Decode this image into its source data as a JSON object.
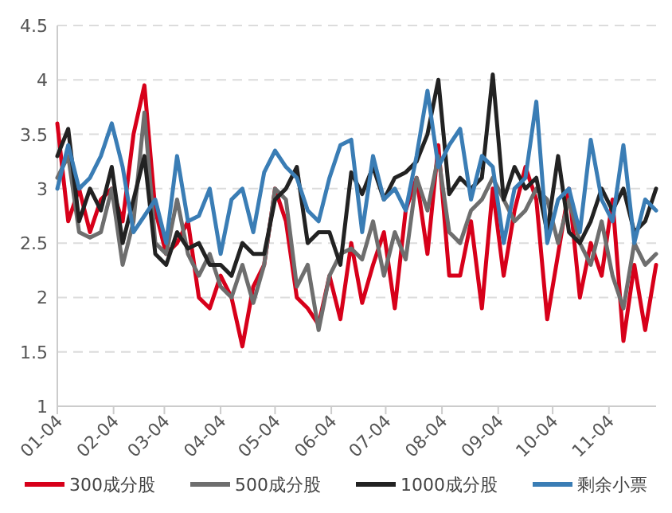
{
  "chart_data": {
    "type": "line",
    "x": [
      "--01-04",
      "--01-10",
      "--01-16",
      "--01-22",
      "--01-28",
      "--02-03",
      "--02-09",
      "--02-15",
      "--02-21",
      "--02-27",
      "--03-05",
      "--03-11",
      "--03-17",
      "--03-23",
      "--03-29",
      "--04-04",
      "--04-10",
      "--04-16",
      "--04-22",
      "--04-28",
      "--05-04",
      "--05-10",
      "--05-16",
      "--05-22",
      "--05-28",
      "--06-03",
      "--06-09",
      "--06-15",
      "--06-21",
      "--06-27",
      "--07-03",
      "--07-09",
      "--07-15",
      "--07-21",
      "--07-27",
      "--08-02",
      "--08-08",
      "--08-14",
      "--08-20",
      "--08-26",
      "--09-01",
      "--09-07",
      "--09-13",
      "--09-19",
      "--09-25",
      "--10-01",
      "--10-07",
      "--10-13",
      "--10-19",
      "--10-25",
      "--10-31",
      "--11-06",
      "--11-12",
      "--11-18",
      "--11-24",
      "--11-30"
    ],
    "series": [
      {
        "name": "300成分股",
        "color": "#d7001a",
        "values": [
          3.6,
          2.7,
          3.0,
          2.6,
          2.9,
          3.0,
          2.7,
          3.5,
          3.95,
          2.8,
          2.4,
          2.5,
          2.7,
          2.0,
          1.9,
          2.2,
          2.0,
          1.55,
          2.1,
          2.3,
          3.0,
          2.7,
          2.0,
          1.9,
          1.75,
          2.2,
          1.8,
          2.5,
          1.95,
          2.3,
          2.6,
          1.9,
          2.8,
          3.1,
          2.4,
          3.4,
          2.2,
          2.2,
          2.7,
          1.9,
          3.0,
          2.2,
          2.8,
          3.2,
          2.9,
          1.8,
          2.4,
          3.0,
          2.0,
          2.5,
          2.2,
          2.9,
          1.6,
          2.3,
          1.7,
          2.3
        ]
      },
      {
        "name": "500成分股",
        "color": "#6e6e6e",
        "values": [
          3.1,
          3.3,
          2.6,
          2.55,
          2.6,
          3.0,
          2.3,
          2.7,
          3.7,
          2.5,
          2.4,
          2.9,
          2.4,
          2.2,
          2.4,
          2.1,
          2.0,
          2.3,
          1.95,
          2.3,
          3.0,
          2.9,
          2.1,
          2.3,
          1.7,
          2.2,
          2.4,
          2.45,
          2.35,
          2.7,
          2.2,
          2.6,
          2.35,
          3.1,
          2.8,
          3.3,
          2.6,
          2.5,
          2.8,
          2.9,
          3.1,
          2.9,
          2.7,
          2.8,
          3.0,
          2.9,
          2.5,
          2.9,
          2.5,
          2.3,
          2.7,
          2.2,
          1.9,
          2.5,
          2.3,
          2.4
        ]
      },
      {
        "name": "1000成分股",
        "color": "#222222",
        "values": [
          3.3,
          3.55,
          2.7,
          3.0,
          2.8,
          3.2,
          2.5,
          2.9,
          3.3,
          2.4,
          2.3,
          2.6,
          2.45,
          2.5,
          2.3,
          2.3,
          2.2,
          2.5,
          2.4,
          2.4,
          2.9,
          3.0,
          3.2,
          2.5,
          2.6,
          2.6,
          2.3,
          3.15,
          2.95,
          3.2,
          2.9,
          3.1,
          3.15,
          3.25,
          3.5,
          4.0,
          2.95,
          3.1,
          3.0,
          3.1,
          4.05,
          2.9,
          3.2,
          3.0,
          3.1,
          2.6,
          3.3,
          2.6,
          2.5,
          2.7,
          3.0,
          2.8,
          3.0,
          2.6,
          2.7,
          3.0
        ]
      },
      {
        "name": "剩余小票",
        "color": "#3a7db5",
        "values": [
          3.0,
          3.4,
          3.0,
          3.1,
          3.3,
          3.6,
          3.2,
          2.6,
          2.75,
          2.9,
          2.5,
          3.3,
          2.7,
          2.75,
          3.0,
          2.4,
          2.9,
          3.0,
          2.6,
          3.15,
          3.35,
          3.2,
          3.1,
          2.8,
          2.7,
          3.1,
          3.4,
          3.45,
          2.6,
          3.3,
          2.9,
          3.0,
          2.8,
          3.3,
          3.9,
          3.2,
          3.4,
          3.55,
          2.9,
          3.3,
          3.2,
          2.5,
          3.0,
          3.1,
          3.8,
          2.5,
          2.9,
          3.0,
          2.6,
          3.45,
          2.9,
          2.7,
          3.4,
          2.5,
          2.9,
          2.8
        ]
      }
    ],
    "xlim": [
      "--01-04",
      "--11-30"
    ],
    "xticks": [
      {
        "value": "--01-04",
        "label": "01-04"
      },
      {
        "value": "--02-04",
        "label": "02-04"
      },
      {
        "value": "--03-04",
        "label": "03-04"
      },
      {
        "value": "--04-04",
        "label": "04-04"
      },
      {
        "value": "--05-04",
        "label": "05-04"
      },
      {
        "value": "--06-04",
        "label": "06-04"
      },
      {
        "value": "--07-04",
        "label": "07-04"
      },
      {
        "value": "--08-04",
        "label": "08-04"
      },
      {
        "value": "--09-04",
        "label": "09-04"
      },
      {
        "value": "--10-04",
        "label": "10-04"
      },
      {
        "value": "--11-04",
        "label": "11-04"
      }
    ],
    "ylim": [
      1,
      4.5
    ],
    "yticks": [
      1,
      1.5,
      2,
      2.5,
      3,
      3.5,
      4,
      4.5
    ],
    "grid": "y",
    "legend": "bottom",
    "marker": "none",
    "line_style": "solid"
  }
}
